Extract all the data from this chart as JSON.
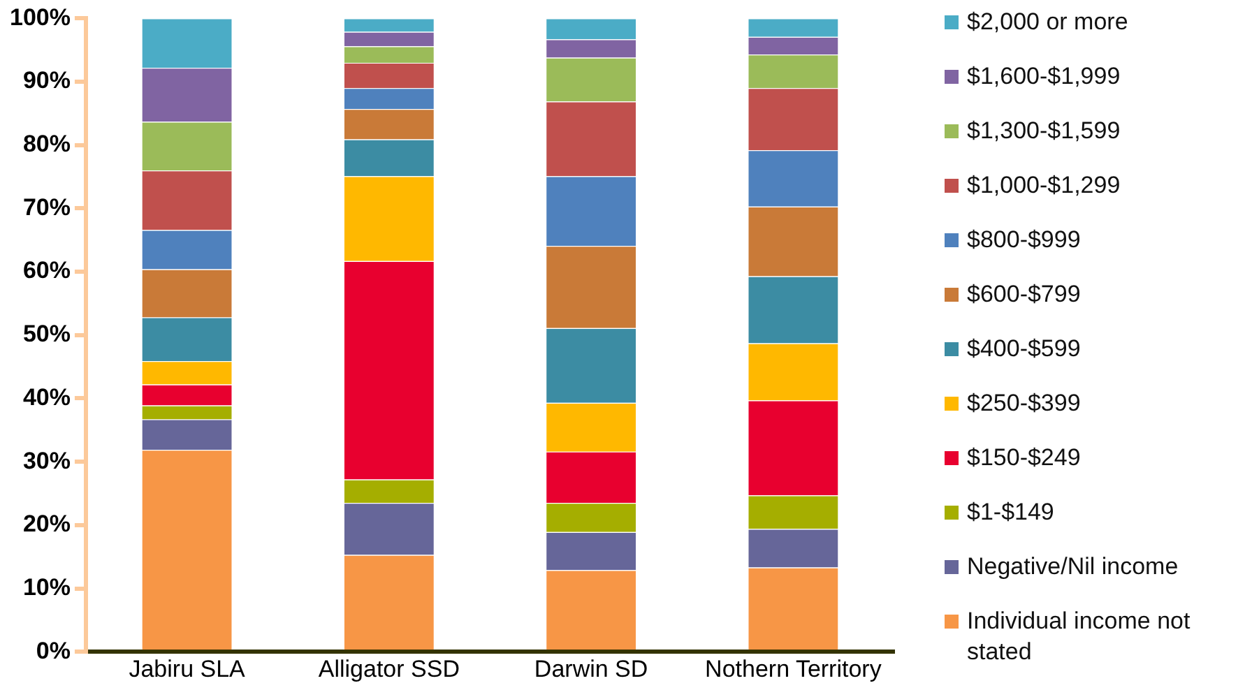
{
  "chart_data": {
    "type": "bar",
    "stacked": true,
    "categories": [
      "Jabiru SLA",
      "Alligator SSD",
      "Darwin SD",
      "Nothern Territory"
    ],
    "series": [
      {
        "name": "Individual income not stated",
        "color": "#f79646",
        "values": [
          31.9,
          15.3,
          12.9,
          13.3
        ]
      },
      {
        "name": "Negative/Nil income",
        "color": "#666699",
        "values": [
          4.8,
          8.2,
          6.0,
          6.1
        ]
      },
      {
        "name": "$1-$149",
        "color": "#a5ae00",
        "values": [
          2.2,
          3.7,
          4.6,
          5.3
        ]
      },
      {
        "name": "$150-$249",
        "color": "#e8002f",
        "values": [
          3.3,
          34.5,
          8.1,
          15.0
        ]
      },
      {
        "name": "$250-$399",
        "color": "#ffb800",
        "values": [
          3.7,
          13.4,
          7.7,
          9.0
        ]
      },
      {
        "name": "$400-$599",
        "color": "#3c8ca3",
        "values": [
          6.9,
          5.8,
          11.8,
          10.6
        ]
      },
      {
        "name": "$600-$799",
        "color": "#c97a38",
        "values": [
          7.6,
          4.8,
          13.0,
          11.0
        ]
      },
      {
        "name": "$800-$999",
        "color": "#4f81bd",
        "values": [
          6.2,
          3.3,
          11.0,
          8.9
        ]
      },
      {
        "name": "$1,000-$1,299",
        "color": "#c0504d",
        "values": [
          9.4,
          4.0,
          11.8,
          9.8
        ]
      },
      {
        "name": "$1,300-$1,599",
        "color": "#9bbb59",
        "values": [
          7.7,
          2.6,
          6.9,
          5.3
        ]
      },
      {
        "name": "$1,600-$1,999",
        "color": "#8064a2",
        "values": [
          8.5,
          2.3,
          2.9,
          2.8
        ]
      },
      {
        "name": "$2,000 or more",
        "color": "#4bacc6",
        "values": [
          7.8,
          2.1,
          3.3,
          2.9
        ]
      }
    ],
    "ylim": [
      0,
      100
    ],
    "yticks": [
      {
        "value": 0,
        "label": "0%"
      },
      {
        "value": 10,
        "label": "10%"
      },
      {
        "value": 20,
        "label": "20%"
      },
      {
        "value": 30,
        "label": "30%"
      },
      {
        "value": 40,
        "label": "40%"
      },
      {
        "value": 50,
        "label": "50%"
      },
      {
        "value": 60,
        "label": "60%"
      },
      {
        "value": 70,
        "label": "70%"
      },
      {
        "value": 80,
        "label": "80%"
      },
      {
        "value": 90,
        "label": "90%"
      },
      {
        "value": 100,
        "label": "100%"
      }
    ],
    "grid": false,
    "legend": "right"
  }
}
